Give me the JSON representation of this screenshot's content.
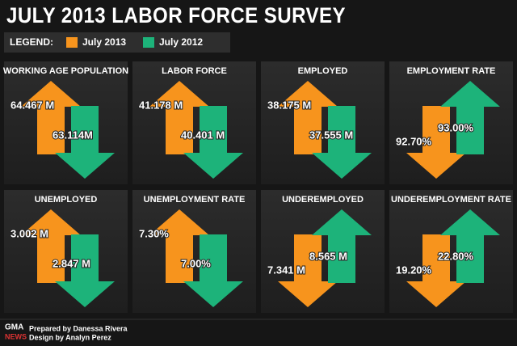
{
  "title": "JULY 2013 LABOR FORCE SURVEY",
  "legend": {
    "label": "LEGEND:",
    "items": [
      {
        "name": "July 2013",
        "color": "#f7941d"
      },
      {
        "name": "July 2012",
        "color": "#1db37a"
      }
    ]
  },
  "panels": [
    {
      "title": "WORKING AGE POPULATION",
      "values": [
        {
          "text": "64.467 M",
          "direction": "up"
        },
        {
          "text": "63.114M",
          "direction": "down"
        }
      ]
    },
    {
      "title": "LABOR FORCE",
      "values": [
        {
          "text": "41.178 M",
          "direction": "up"
        },
        {
          "text": "40.401 M",
          "direction": "down"
        }
      ]
    },
    {
      "title": "EMPLOYED",
      "values": [
        {
          "text": "38.175 M",
          "direction": "up"
        },
        {
          "text": "37.555 M",
          "direction": "down"
        }
      ]
    },
    {
      "title": "EMPLOYMENT RATE",
      "values": [
        {
          "text": "92.70%",
          "direction": "down"
        },
        {
          "text": "93.00%",
          "direction": "up"
        }
      ]
    },
    {
      "title": "UNEMPLOYED",
      "values": [
        {
          "text": "3.002 M",
          "direction": "up"
        },
        {
          "text": "2.847 M",
          "direction": "down"
        }
      ]
    },
    {
      "title": "UNEMPLOYMENT RATE",
      "values": [
        {
          "text": "7.30%",
          "direction": "up"
        },
        {
          "text": "7.00%",
          "direction": "down"
        }
      ]
    },
    {
      "title": "UNDEREMPLOYED",
      "values": [
        {
          "text": "7.341 M",
          "direction": "down"
        },
        {
          "text": "8.565 M",
          "direction": "up"
        }
      ]
    },
    {
      "title": "UNDEREMPLOYMENT RATE",
      "values": [
        {
          "text": "19.20%",
          "direction": "down"
        },
        {
          "text": "22.80%",
          "direction": "up"
        }
      ]
    }
  ],
  "footer": {
    "logo_top": "GMA",
    "logo_bottom": "NEWS",
    "prepared": "Prepared by Danessa Rivera",
    "design": "Design by Analyn Perez"
  }
}
